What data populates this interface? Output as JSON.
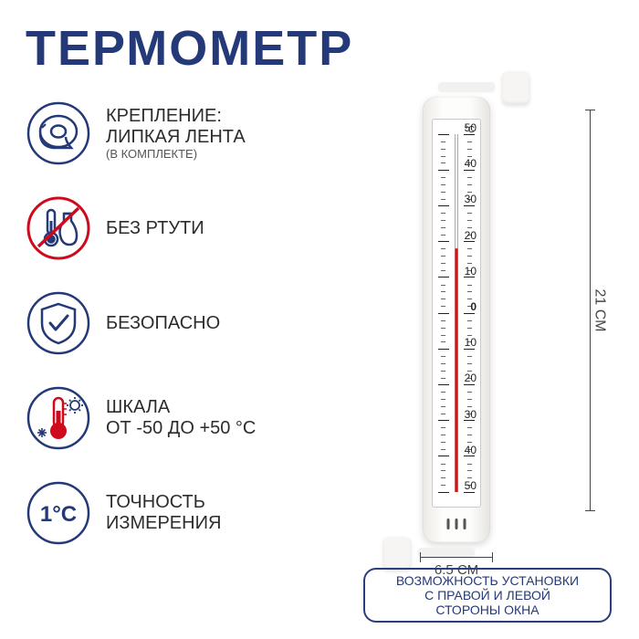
{
  "title": "ТЕРМОМЕТР",
  "colors": {
    "brand": "#243977",
    "text": "#2c2c2c",
    "icon_ring": "#243977",
    "danger": "#cf0a1d",
    "mercury": "#d51313",
    "frame": "#c8c8c8",
    "bg": "#ffffff"
  },
  "features": [
    {
      "icon": "tape",
      "label": "КРЕПЛЕНИЕ:\nЛИПКАЯ ЛЕНТА",
      "sub": "(В КОМПЛЕКТЕ)"
    },
    {
      "icon": "no-mercury",
      "label": "БЕЗ РТУТИ"
    },
    {
      "icon": "shield",
      "label": "БЕЗОПАСНО"
    },
    {
      "icon": "range",
      "label": "ШКАЛА\nОТ -50 ДО +50 °C"
    },
    {
      "icon": "accuracy",
      "icon_text": "1°C",
      "label": "ТОЧНОСТЬ\nИЗМЕРЕНИЯ"
    }
  ],
  "thermometer": {
    "unit": "°C",
    "scale_max": 50,
    "scale_min": -50,
    "major_step": 10,
    "labels": [
      "50",
      "40",
      "30",
      "20",
      "10",
      "0",
      "10",
      "20",
      "30",
      "40",
      "50"
    ],
    "mercury_value": 18,
    "body_color_stops": [
      "#eceae6",
      "#fdfdfb",
      "#fdfdfb",
      "#e6e4df"
    ]
  },
  "dimensions": {
    "height": "21 СМ",
    "width": "6.5 СМ"
  },
  "note": "ВОЗМОЖНОСТЬ УСТАНОВКИ\nС ПРАВОЙ И ЛЕВОЙ\nСТОРОНЫ ОКНА"
}
